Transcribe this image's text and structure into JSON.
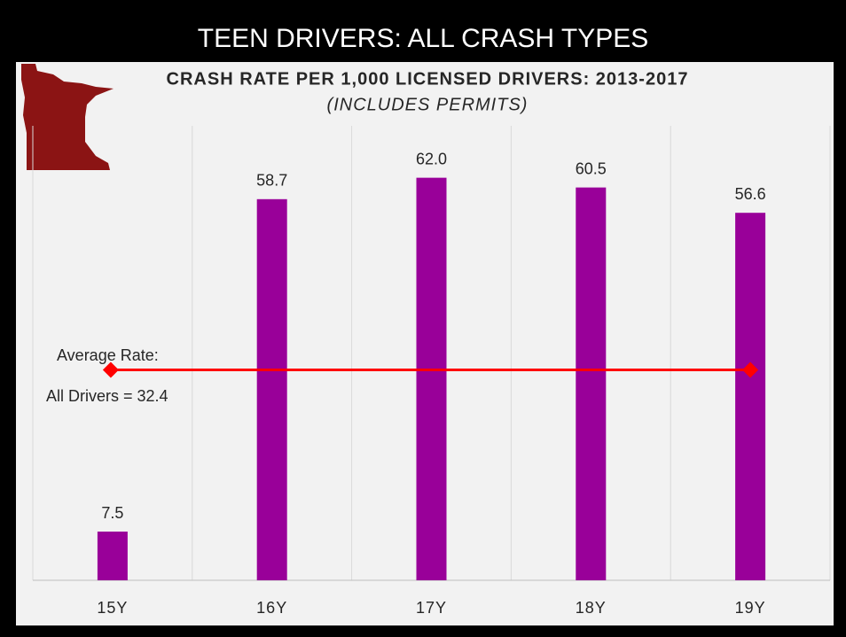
{
  "chart_data": {
    "type": "bar",
    "heading": "TEEN DRIVERS: ALL CRASH TYPES",
    "title": "CRASH RATE PER 1,000 LICENSED DRIVERS: 2013-2017",
    "subtitle": "(INCLUDES PERMITS)",
    "categories": [
      "15Y",
      "16Y",
      "17Y",
      "18Y",
      "19Y"
    ],
    "values": [
      7.5,
      58.7,
      62.0,
      60.5,
      56.6
    ],
    "value_labels": [
      "7.5",
      "58.7",
      "62.0",
      "60.5",
      "56.6"
    ],
    "color": "#990099",
    "ylim": [
      0,
      70
    ],
    "reference_line": {
      "title": "Average Rate:",
      "label": "All Drivers = 32.4",
      "value": 32.4,
      "color": "#ff0000"
    }
  }
}
